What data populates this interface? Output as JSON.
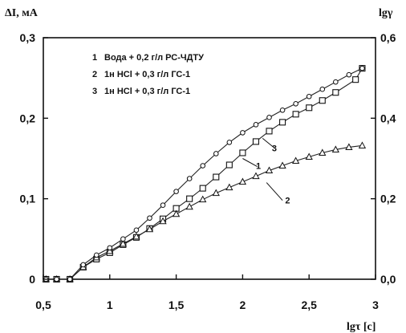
{
  "chart_data": {
    "type": "scatter",
    "title": "",
    "xlabel": "lgτ [c]",
    "ylabel_left": "ΔI, мА",
    "ylabel_right": "lgγ",
    "xlim": [
      0.5,
      3
    ],
    "ylim_left": [
      0,
      0.3
    ],
    "ylim_right": [
      0,
      0.6
    ],
    "x_ticks": [
      "0,5",
      "1",
      "1,5",
      "2",
      "2,5",
      "3"
    ],
    "y_left_ticks": [
      "0",
      "0,1",
      "0,2",
      "0,3"
    ],
    "y_right_ticks": [
      "0,0",
      "0,2",
      "0,4",
      "0,6"
    ],
    "grid": false,
    "legend_position": "top-left",
    "legend": [
      {
        "num": "1",
        "text": "Вода + 0,2 г/л РС-ЧДТУ"
      },
      {
        "num": "2",
        "text": "1н HCl + 0,3 г/л ГС-1"
      },
      {
        "num": "3",
        "text": "1н HCl + 0,3 г/л ГС-1"
      }
    ],
    "series": [
      {
        "name": "1",
        "marker": "square",
        "x": [
          0.52,
          0.6,
          0.7,
          0.8,
          0.9,
          1.0,
          1.1,
          1.2,
          1.3,
          1.4,
          1.5,
          1.6,
          1.7,
          1.8,
          1.9,
          2.0,
          2.1,
          2.2,
          2.3,
          2.4,
          2.5,
          2.6,
          2.7,
          2.85,
          2.9
        ],
        "y": [
          0.0,
          0.0,
          0.0,
          0.015,
          0.025,
          0.033,
          0.043,
          0.052,
          0.063,
          0.075,
          0.088,
          0.1,
          0.113,
          0.127,
          0.142,
          0.157,
          0.171,
          0.184,
          0.195,
          0.205,
          0.213,
          0.222,
          0.232,
          0.248,
          0.262
        ]
      },
      {
        "name": "2",
        "marker": "triangle",
        "x": [
          0.52,
          0.6,
          0.7,
          0.8,
          0.9,
          1.0,
          1.1,
          1.2,
          1.3,
          1.4,
          1.5,
          1.6,
          1.7,
          1.8,
          1.9,
          2.0,
          2.1,
          2.2,
          2.3,
          2.4,
          2.5,
          2.6,
          2.7,
          2.8,
          2.9
        ],
        "y": [
          0.0,
          0.0,
          0.0,
          0.015,
          0.027,
          0.035,
          0.044,
          0.053,
          0.062,
          0.072,
          0.081,
          0.09,
          0.099,
          0.107,
          0.114,
          0.121,
          0.128,
          0.135,
          0.141,
          0.147,
          0.152,
          0.157,
          0.161,
          0.164,
          0.166
        ]
      },
      {
        "name": "3",
        "marker": "circle",
        "x": [
          0.52,
          0.6,
          0.7,
          0.8,
          0.9,
          1.0,
          1.1,
          1.2,
          1.3,
          1.4,
          1.5,
          1.6,
          1.7,
          1.8,
          1.9,
          2.0,
          2.1,
          2.2,
          2.3,
          2.4,
          2.5,
          2.6,
          2.7,
          2.8,
          2.9
        ],
        "y": [
          0.0,
          0.0,
          0.0,
          0.018,
          0.03,
          0.039,
          0.05,
          0.061,
          0.076,
          0.092,
          0.109,
          0.125,
          0.141,
          0.156,
          0.17,
          0.182,
          0.192,
          0.201,
          0.21,
          0.218,
          0.227,
          0.236,
          0.245,
          0.254,
          0.262
        ]
      }
    ],
    "curve_labels": [
      {
        "series": "3",
        "text": "3",
        "x": 2.22,
        "y": 0.159
      },
      {
        "series": "1",
        "text": "1",
        "x": 2.1,
        "y": 0.137
      },
      {
        "series": "2",
        "text": "2",
        "x": 2.32,
        "y": 0.094
      }
    ],
    "curve_label_leaders": [
      {
        "series": "3",
        "from": [
          2.15,
          0.175
        ],
        "to": [
          2.24,
          0.163
        ]
      },
      {
        "series": "1",
        "from": [
          2.0,
          0.15
        ],
        "to": [
          2.11,
          0.14
        ]
      },
      {
        "series": "2",
        "from": [
          2.18,
          0.12
        ],
        "to": [
          2.3,
          0.098
        ]
      }
    ]
  }
}
